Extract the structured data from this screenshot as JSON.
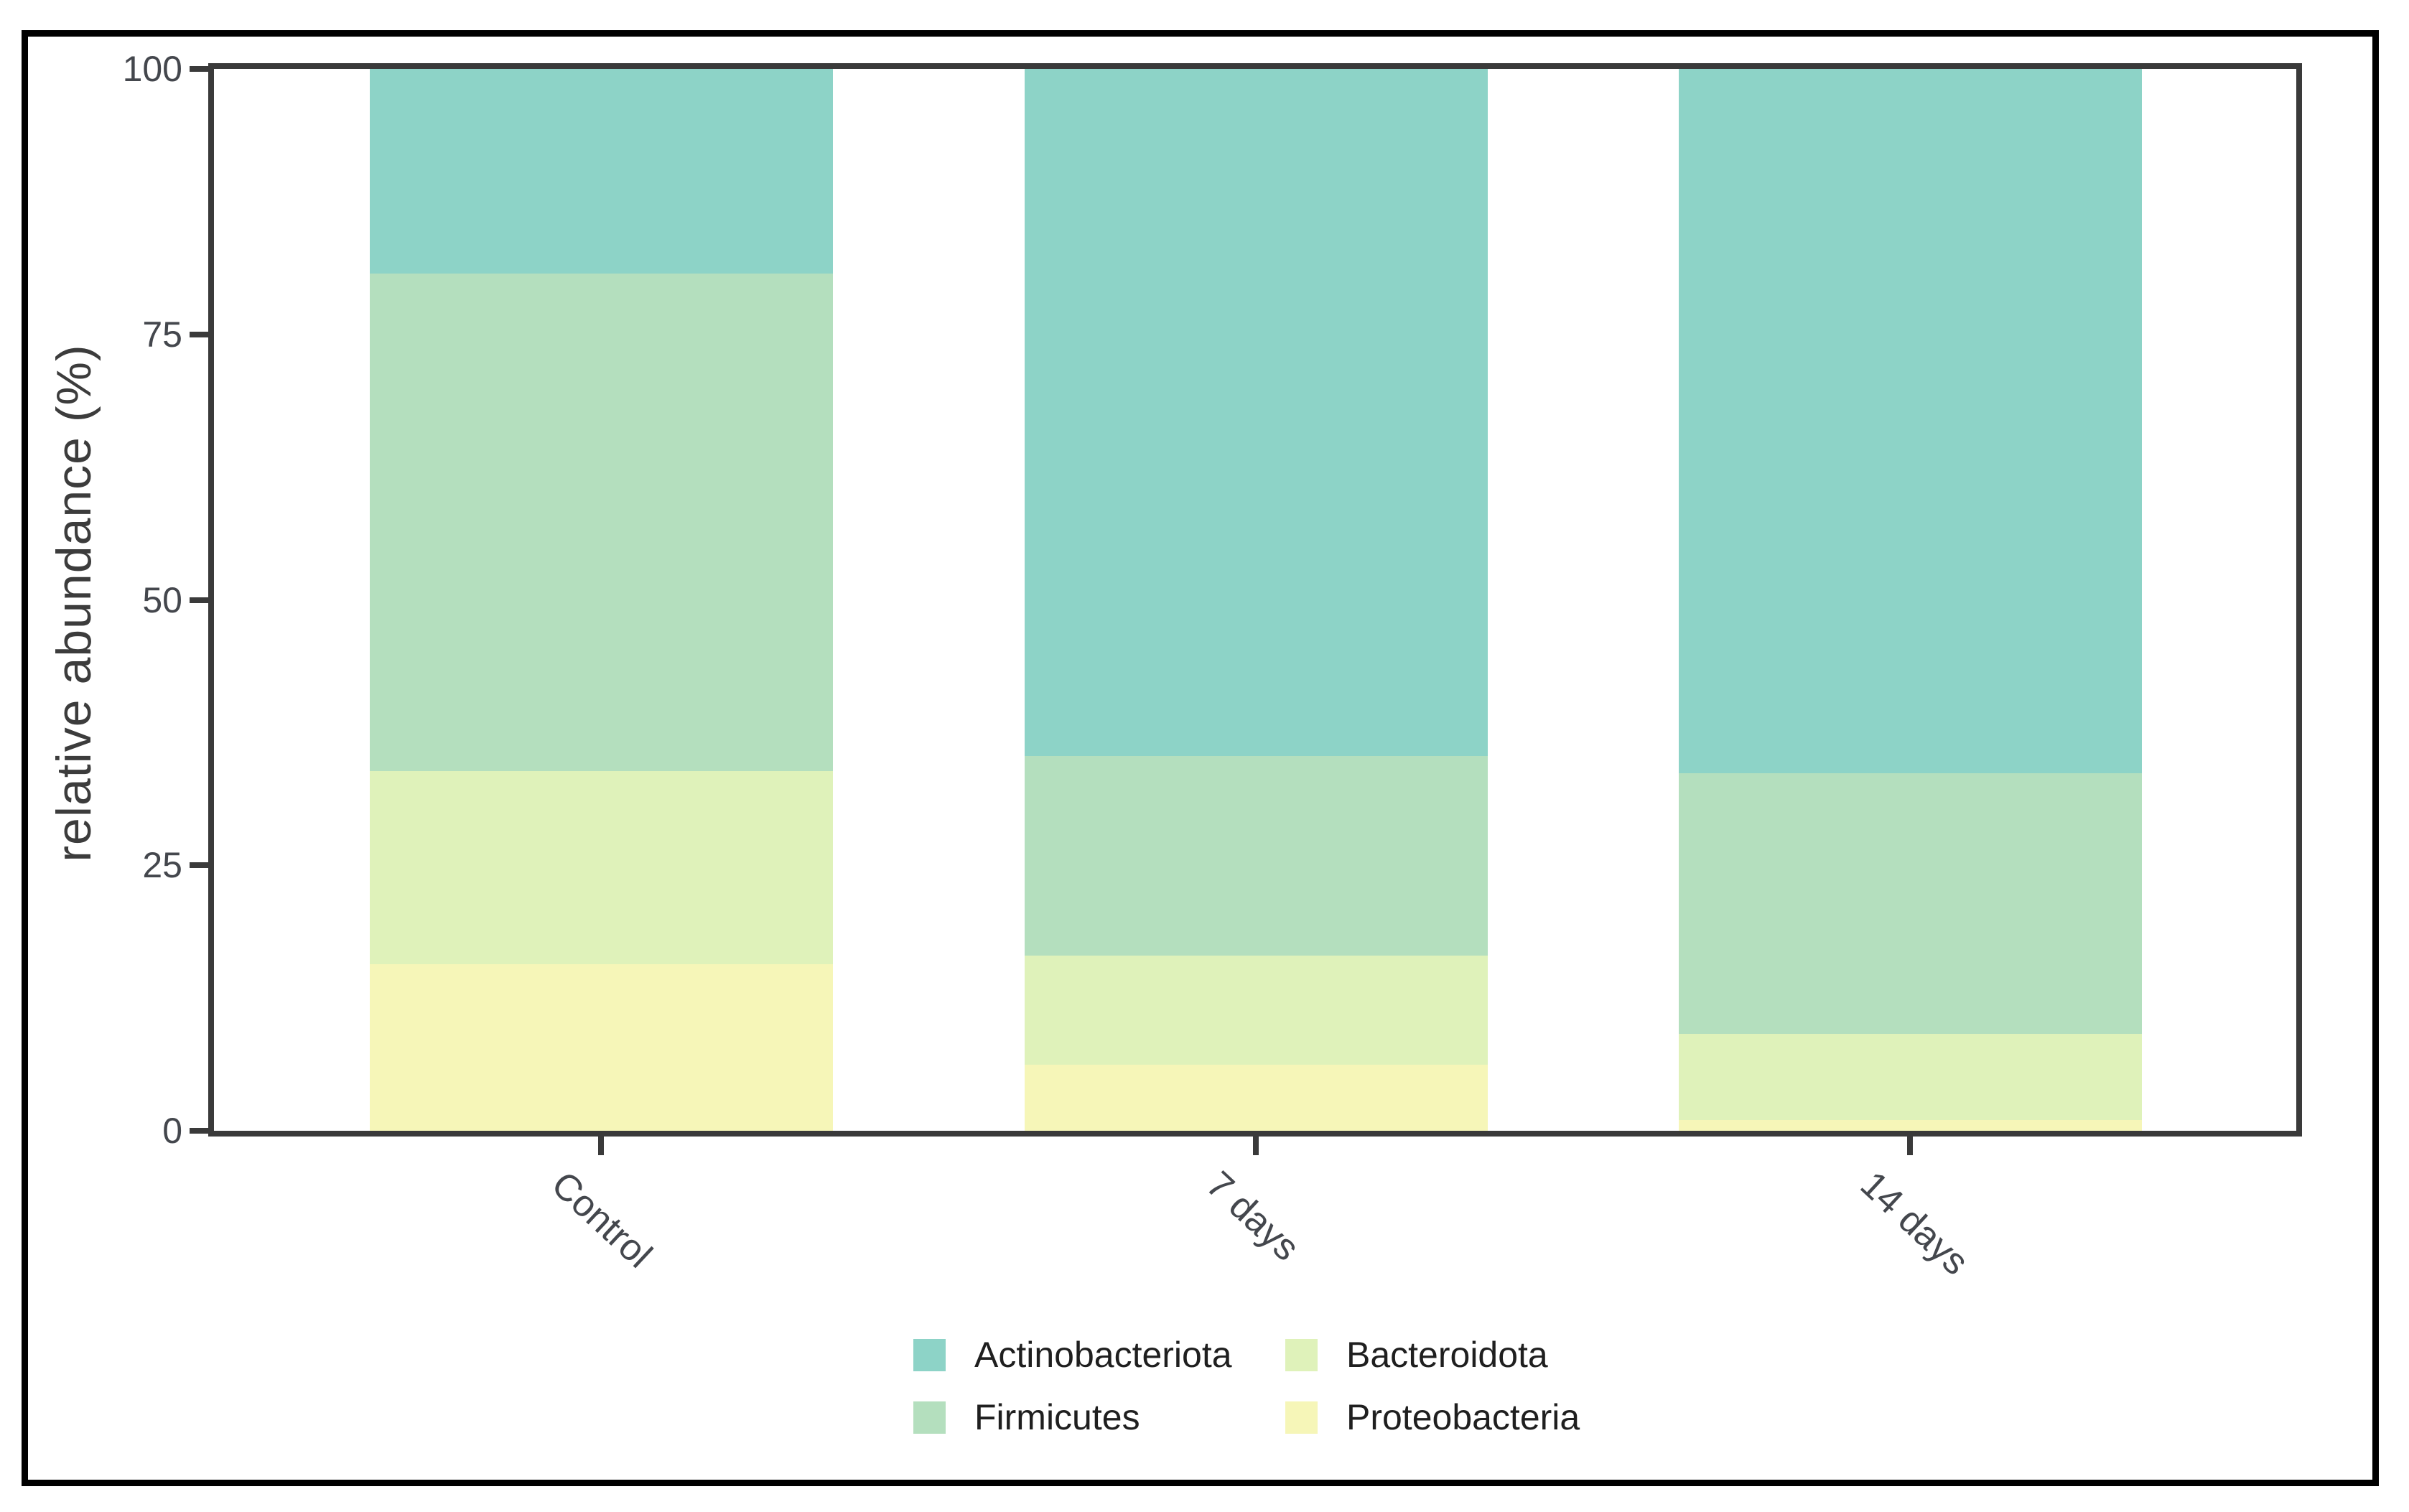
{
  "figure": {
    "background": "#ffffff",
    "outer_border_color": "#000000",
    "panel_border_color": "#3a3a3a"
  },
  "chart_data": {
    "type": "bar",
    "stacked": true,
    "orientation": "vertical",
    "title": "",
    "xlabel": "",
    "ylabel": "relative abundance (%)",
    "ylim": [
      0,
      100
    ],
    "yticks": [
      0,
      25,
      50,
      75,
      100
    ],
    "grid": false,
    "categories": [
      "Control",
      "7 days",
      "14 days"
    ],
    "series": [
      {
        "name": "Actinobacteriota",
        "color": "#8DD3C7",
        "values": [
          19.3,
          64.7,
          66.3
        ]
      },
      {
        "name": "Firmicutes",
        "color": "#B4DFBE",
        "values": [
          46.8,
          18.8,
          24.6
        ]
      },
      {
        "name": "Bacteroidota",
        "color": "#DFF2BA",
        "values": [
          18.2,
          10.3,
          8.1
        ]
      },
      {
        "name": "Proteobacteria",
        "color": "#F6F6B8",
        "values": [
          15.7,
          6.2,
          1.0
        ]
      }
    ],
    "stack_order_bottom_to_top": [
      "Proteobacteria",
      "Bacteroidota",
      "Firmicutes",
      "Actinobacteriota"
    ],
    "legend_position": "bottom",
    "legend_columns": 2,
    "axis_color": "#3a3a3a",
    "tick_label_color": "#44474d"
  }
}
